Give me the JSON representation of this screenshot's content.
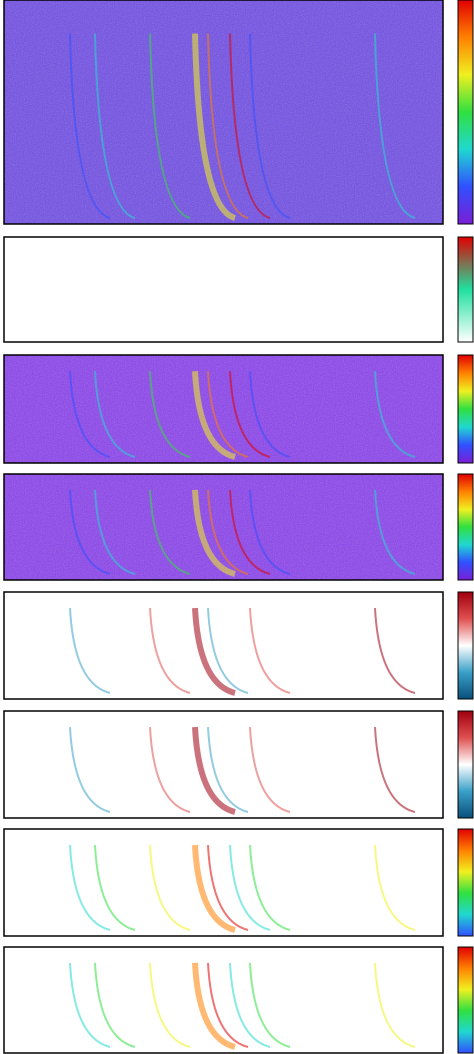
{
  "chart_data": [
    {
      "type": "heatmap",
      "background": "#6f4be8",
      "colormap": [
        "#7a1fd6",
        "#3050ff",
        "#20d8d0",
        "#30e040",
        "#f0f020",
        "#ff8000",
        "#e00000"
      ]
    },
    {
      "type": "heatmap",
      "background": "#ffffff",
      "colormap": [
        "#ffffff",
        "#20e0a0",
        "#e00000"
      ]
    },
    {
      "type": "heatmap",
      "background": "#8a3ff0",
      "colormap": [
        "#7a1fd6",
        "#3050ff",
        "#20d8d0",
        "#30e040",
        "#f0f020",
        "#ff8000",
        "#e00000"
      ]
    },
    {
      "type": "heatmap",
      "background": "#8a3ff0",
      "colormap": [
        "#7a1fd6",
        "#3050ff",
        "#20d8d0",
        "#30e040",
        "#f0f020",
        "#ff8000",
        "#e00000"
      ]
    },
    {
      "type": "heatmap",
      "background": "#ffffff",
      "colormap": [
        "#0a4f7a",
        "#3aa0c8",
        "#ffffff",
        "#e05050",
        "#a00010"
      ]
    },
    {
      "type": "heatmap",
      "background": "#ffffff",
      "colormap": [
        "#0a4f7a",
        "#3aa0c8",
        "#ffffff",
        "#e05050",
        "#a00010"
      ]
    },
    {
      "type": "heatmap",
      "background": "#ffffff",
      "colormap": [
        "#3050ff",
        "#20d8d0",
        "#30e040",
        "#f0f020",
        "#ff8000",
        "#e00000"
      ]
    },
    {
      "type": "heatmap",
      "background": "#ffffff",
      "colormap": [
        "#3050ff",
        "#20d8d0",
        "#30e040",
        "#f0f020",
        "#ff8000",
        "#e00000"
      ]
    }
  ]
}
